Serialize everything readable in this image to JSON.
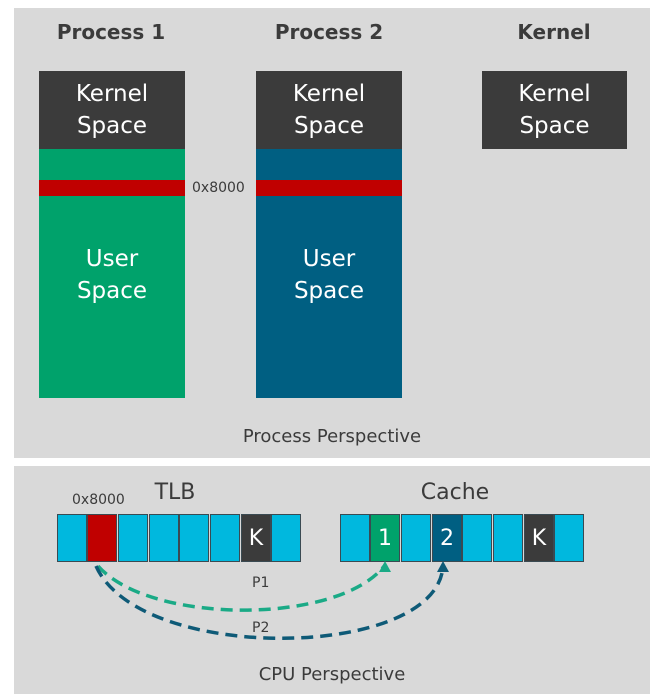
{
  "process_view": {
    "headings": [
      "Process 1",
      "Process 2",
      "Kernel"
    ],
    "kernel_label_line1": "Kernel",
    "kernel_label_line2": "Space",
    "user_label_line1": "User",
    "user_label_line2": "Space",
    "address_label": "0x8000",
    "caption": "Process Perspective"
  },
  "cpu_view": {
    "tlb_title": "TLB",
    "tlb_address_label": "0x8000",
    "tlb_cells": [
      "",
      "",
      "",
      "",
      "",
      "",
      "K",
      ""
    ],
    "cache_title": "Cache",
    "cache_cells": [
      "",
      "1",
      "",
      "2",
      "",
      "",
      "K",
      ""
    ],
    "arrow_labels": [
      "P1",
      "P2"
    ],
    "caption": "CPU Perspective"
  },
  "colors": {
    "panel": "#d9d9d9",
    "kernel": "#3b3b3b",
    "process1": "#00a26b",
    "process2": "#005f82",
    "highlight": "#c00000",
    "cell": "#00b8de",
    "arrow_p1": "#1aaa86",
    "arrow_p2": "#0e5a77"
  }
}
